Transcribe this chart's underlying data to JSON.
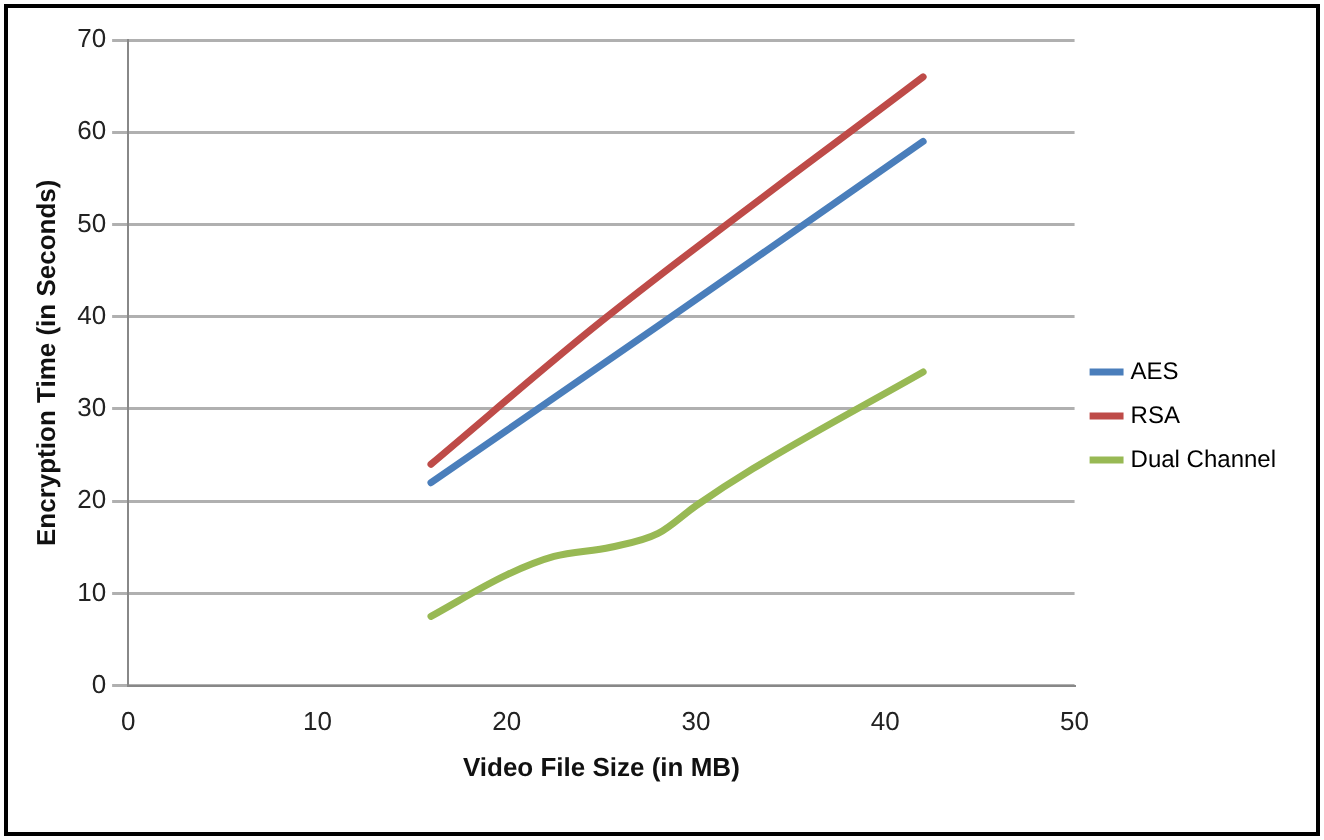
{
  "chart_data": {
    "type": "line",
    "xlabel": "Video File Size (in MB)",
    "ylabel": "Encryption Time (in Seconds)",
    "xlim": [
      0,
      50
    ],
    "xticks": [
      0,
      10,
      20,
      30,
      40,
      50
    ],
    "ylim": [
      0,
      70
    ],
    "yticks": [
      0,
      10,
      20,
      30,
      40,
      50,
      60,
      70
    ],
    "grid": "y",
    "legend": "right",
    "marker": "none",
    "line_style": "solid",
    "series": [
      {
        "name": "AES",
        "color": "#4a7ebb",
        "x": [
          16,
          28,
          42
        ],
        "values": [
          22,
          39,
          59
        ]
      },
      {
        "name": "RSA",
        "color": "#be4b48",
        "x": [
          16,
          25,
          42
        ],
        "values": [
          24,
          39.5,
          66
        ]
      },
      {
        "name": "Dual Channel",
        "color": "#98b954",
        "x": [
          16,
          20,
          22.5,
          25.5,
          28,
          30,
          33,
          42
        ],
        "values": [
          7.5,
          12,
          14,
          15,
          16.5,
          19.5,
          23.5,
          34
        ]
      }
    ]
  }
}
